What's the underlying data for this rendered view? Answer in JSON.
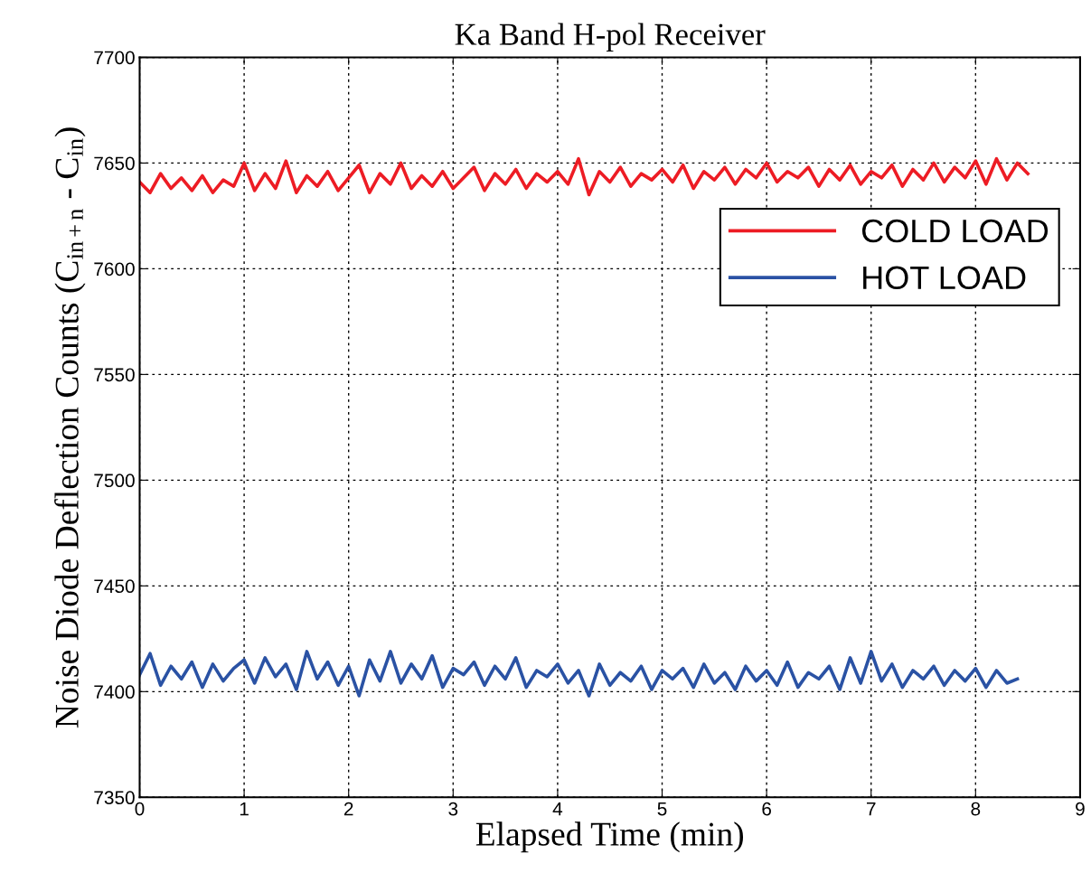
{
  "chart_data": {
    "type": "line",
    "title": "Ka Band H-pol Receiver",
    "xlabel": "Elapsed Time (min)",
    "ylabel": "Noise Diode Deflection Counts (C$_{in+n}$ - C$_{in}$)",
    "xlim": [
      0,
      9
    ],
    "ylim": [
      7350,
      7700
    ],
    "xticks": [
      0,
      1,
      2,
      3,
      4,
      5,
      6,
      7,
      8,
      9
    ],
    "yticks": [
      7350,
      7400,
      7450,
      7500,
      7550,
      7600,
      7650,
      7700
    ],
    "grid": true,
    "legend": "right",
    "marker": "none",
    "line_style": "solid",
    "series": [
      {
        "name": "COLD LOAD",
        "color": "#ed1c24",
        "x": [
          0,
          0.1,
          0.2,
          0.3,
          0.4,
          0.5,
          0.6,
          0.7,
          0.8,
          0.9,
          1.0,
          1.1,
          1.2,
          1.3,
          1.4,
          1.5,
          1.6,
          1.7,
          1.8,
          1.9,
          2.0,
          2.1,
          2.2,
          2.3,
          2.4,
          2.5,
          2.6,
          2.7,
          2.8,
          2.9,
          3.0,
          3.1,
          3.2,
          3.3,
          3.4,
          3.5,
          3.6,
          3.7,
          3.8,
          3.9,
          4.0,
          4.1,
          4.2,
          4.3,
          4.4,
          4.5,
          4.6,
          4.7,
          4.8,
          4.9,
          5.0,
          5.1,
          5.2,
          5.3,
          5.4,
          5.5,
          5.6,
          5.7,
          5.8,
          5.9,
          6.0,
          6.1,
          6.2,
          6.3,
          6.4,
          6.5,
          6.6,
          6.7,
          6.8,
          6.9,
          7.0,
          7.1,
          7.2,
          7.3,
          7.4,
          7.5,
          7.6,
          7.7,
          7.8,
          7.9,
          8.0,
          8.1,
          8.2,
          8.3,
          8.4,
          8.5
        ],
        "values": [
          7641,
          7636,
          7645,
          7638,
          7643,
          7637,
          7644,
          7636,
          7642,
          7639,
          7650,
          7637,
          7645,
          7638,
          7651,
          7636,
          7644,
          7639,
          7646,
          7637,
          7643,
          7649,
          7636,
          7645,
          7640,
          7650,
          7638,
          7644,
          7639,
          7646,
          7638,
          7643,
          7648,
          7637,
          7645,
          7640,
          7647,
          7638,
          7645,
          7641,
          7646,
          7640,
          7652,
          7635,
          7646,
          7641,
          7648,
          7639,
          7645,
          7642,
          7647,
          7641,
          7649,
          7638,
          7646,
          7642,
          7648,
          7640,
          7647,
          7643,
          7650,
          7641,
          7646,
          7643,
          7648,
          7639,
          7647,
          7642,
          7649,
          7640,
          7646,
          7643,
          7649,
          7639,
          7647,
          7642,
          7650,
          7641,
          7648,
          7643,
          7651,
          7640,
          7652,
          7642,
          7650,
          7645
        ]
      },
      {
        "name": "HOT LOAD",
        "color": "#2a52a4",
        "x": [
          0,
          0.1,
          0.2,
          0.3,
          0.4,
          0.5,
          0.6,
          0.7,
          0.8,
          0.9,
          1.0,
          1.1,
          1.2,
          1.3,
          1.4,
          1.5,
          1.6,
          1.7,
          1.8,
          1.9,
          2.0,
          2.1,
          2.2,
          2.3,
          2.4,
          2.5,
          2.6,
          2.7,
          2.8,
          2.9,
          3.0,
          3.1,
          3.2,
          3.3,
          3.4,
          3.5,
          3.6,
          3.7,
          3.8,
          3.9,
          4.0,
          4.1,
          4.2,
          4.3,
          4.4,
          4.5,
          4.6,
          4.7,
          4.8,
          4.9,
          5.0,
          5.1,
          5.2,
          5.3,
          5.4,
          5.5,
          5.6,
          5.7,
          5.8,
          5.9,
          6.0,
          6.1,
          6.2,
          6.3,
          6.4,
          6.5,
          6.6,
          6.7,
          6.8,
          6.9,
          7.0,
          7.1,
          7.2,
          7.3,
          7.4,
          7.5,
          7.6,
          7.7,
          7.8,
          7.9,
          8.0,
          8.1,
          8.2,
          8.3,
          8.4
        ],
        "values": [
          7408,
          7418,
          7403,
          7412,
          7406,
          7414,
          7402,
          7413,
          7405,
          7411,
          7415,
          7404,
          7416,
          7407,
          7413,
          7401,
          7419,
          7406,
          7414,
          7403,
          7412,
          7398,
          7415,
          7405,
          7419,
          7404,
          7413,
          7406,
          7417,
          7402,
          7411,
          7408,
          7414,
          7403,
          7412,
          7406,
          7416,
          7402,
          7410,
          7407,
          7413,
          7404,
          7410,
          7398,
          7413,
          7403,
          7409,
          7405,
          7412,
          7401,
          7410,
          7406,
          7411,
          7402,
          7413,
          7404,
          7409,
          7401,
          7412,
          7405,
          7410,
          7403,
          7414,
          7402,
          7409,
          7406,
          7412,
          7401,
          7416,
          7404,
          7419,
          7405,
          7413,
          7402,
          7410,
          7406,
          7412,
          7403,
          7410,
          7405,
          7411,
          7402,
          7410,
          7404,
          7406
        ]
      }
    ]
  }
}
